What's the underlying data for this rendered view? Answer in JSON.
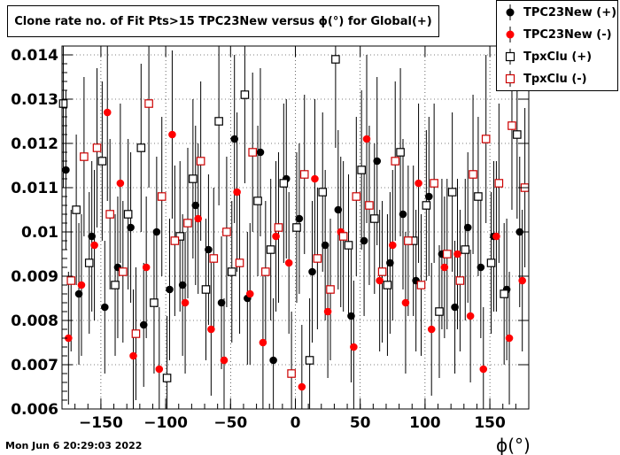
{
  "title": "Clone rate no. of Fit Pts>15 TPC23New versus ϕ(°) for Global(+)",
  "timestamp": "Mon Jun  6 20:29:03 2022",
  "chart_data": {
    "type": "scatter",
    "title": "Clone rate no. of Fit Pts>15 TPC23New versus ϕ(°) for Global(+)",
    "xlabel": "ϕ(°)",
    "ylabel": "",
    "xlim": [
      -180,
      180
    ],
    "ylim": [
      0.006,
      0.0142
    ],
    "grid": true,
    "legend_position": "top-right",
    "x_ticks": [
      -150,
      -100,
      -50,
      0,
      50,
      100,
      150
    ],
    "x_tick_labels": [
      "−150",
      "−100",
      "−50",
      "0",
      "50",
      "100",
      "150"
    ],
    "y_ticks": [
      0.006,
      0.007,
      0.008,
      0.009,
      0.01,
      0.011,
      0.012,
      0.013,
      0.014
    ],
    "y_tick_labels": [
      "0.006",
      "0.007",
      "0.008",
      "0.009",
      "0.01",
      "0.011",
      "0.012",
      "0.013",
      "0.014"
    ],
    "series": [
      {
        "name": "TPC23New (+)",
        "marker": "filled-circle",
        "color": "#000000",
        "x": [
          -177,
          -167,
          -157,
          -147,
          -137,
          -127,
          -117,
          -107,
          -97,
          -87,
          -77,
          -67,
          -57,
          -47,
          -37,
          -27,
          -17,
          -7,
          3,
          13,
          23,
          33,
          43,
          53,
          63,
          73,
          83,
          93,
          103,
          113,
          123,
          133,
          143,
          153,
          163,
          173
        ],
        "y": [
          0.0114,
          0.0086,
          0.0099,
          0.0083,
          0.0092,
          0.0101,
          0.0079,
          0.01,
          0.0087,
          0.0088,
          0.0106,
          0.0096,
          0.0084,
          0.0121,
          0.0085,
          0.0118,
          0.0071,
          0.0112,
          0.0103,
          0.0091,
          0.0097,
          0.0105,
          0.0081,
          0.0098,
          0.0116,
          0.0093,
          0.0104,
          0.0089,
          0.0108,
          0.0095,
          0.0083,
          0.0101,
          0.0092,
          0.0099,
          0.0087,
          0.01
        ],
        "err": [
          0.0018,
          0.0016,
          0.0017,
          0.0015,
          0.0016,
          0.0017,
          0.0014,
          0.0017,
          0.0016,
          0.0016,
          0.0018,
          0.0017,
          0.0015,
          0.0019,
          0.0015,
          0.0019,
          0.0014,
          0.0018,
          0.0017,
          0.0016,
          0.0017,
          0.0018,
          0.0015,
          0.0017,
          0.0019,
          0.0016,
          0.0017,
          0.0016,
          0.0018,
          0.0017,
          0.0015,
          0.0017,
          0.0016,
          0.0017,
          0.0016,
          0.0017
        ]
      },
      {
        "name": "TPC23New (-)",
        "marker": "filled-circle",
        "color": "#ff0000",
        "x": [
          -175,
          -165,
          -155,
          -145,
          -135,
          -125,
          -115,
          -105,
          -95,
          -85,
          -75,
          -65,
          -55,
          -45,
          -35,
          -25,
          -15,
          -5,
          5,
          15,
          25,
          35,
          45,
          55,
          65,
          75,
          85,
          95,
          105,
          115,
          125,
          135,
          145,
          155,
          165,
          175
        ],
        "y": [
          0.0076,
          0.0088,
          0.0097,
          0.0127,
          0.0111,
          0.0072,
          0.0092,
          0.0069,
          0.0122,
          0.0084,
          0.0103,
          0.0078,
          0.0071,
          0.0109,
          0.0086,
          0.0075,
          0.0099,
          0.0093,
          0.0065,
          0.0112,
          0.0082,
          0.01,
          0.0074,
          0.0121,
          0.0089,
          0.0097,
          0.0084,
          0.0111,
          0.0078,
          0.0092,
          0.0095,
          0.0081,
          0.0069,
          0.0099,
          0.0076,
          0.0089
        ],
        "err": [
          0.0015,
          0.0016,
          0.0017,
          0.002,
          0.0018,
          0.0015,
          0.0016,
          0.0014,
          0.0019,
          0.0016,
          0.0017,
          0.0015,
          0.0014,
          0.0018,
          0.0016,
          0.0015,
          0.0017,
          0.0016,
          0.0014,
          0.0018,
          0.0015,
          0.0017,
          0.0015,
          0.0019,
          0.0016,
          0.0017,
          0.0016,
          0.0018,
          0.0015,
          0.0016,
          0.0017,
          0.0015,
          0.0014,
          0.0017,
          0.0015,
          0.0016
        ]
      },
      {
        "name": "TpxClu (+)",
        "marker": "open-square",
        "color": "#000000",
        "x": [
          -179,
          -169,
          -159,
          -149,
          -139,
          -129,
          -119,
          -109,
          -99,
          -89,
          -79,
          -69,
          -59,
          -49,
          -39,
          -29,
          -19,
          -9,
          1,
          11,
          21,
          31,
          41,
          51,
          61,
          71,
          81,
          91,
          101,
          111,
          121,
          131,
          141,
          151,
          161,
          171
        ],
        "y": [
          0.0129,
          0.0105,
          0.0093,
          0.0116,
          0.0088,
          0.0104,
          0.0119,
          0.0084,
          0.0067,
          0.0099,
          0.0112,
          0.0087,
          0.0125,
          0.0091,
          0.0131,
          0.0107,
          0.0096,
          0.0111,
          0.0101,
          0.0071,
          0.0109,
          0.0139,
          0.0097,
          0.0114,
          0.0103,
          0.0088,
          0.0118,
          0.0098,
          0.0106,
          0.0082,
          0.0109,
          0.0096,
          0.0108,
          0.0093,
          0.0086,
          0.0122
        ],
        "err": [
          0.0019,
          0.0017,
          0.0016,
          0.0018,
          0.0016,
          0.0017,
          0.0019,
          0.0016,
          0.0014,
          0.0017,
          0.0018,
          0.0016,
          0.0019,
          0.0016,
          0.002,
          0.0017,
          0.0016,
          0.0018,
          0.0017,
          0.0014,
          0.0018,
          0.002,
          0.0016,
          0.0018,
          0.0017,
          0.0016,
          0.0019,
          0.0017,
          0.0017,
          0.0015,
          0.0018,
          0.0016,
          0.0018,
          0.0016,
          0.0016,
          0.0019
        ]
      },
      {
        "name": "TpxClu (-)",
        "marker": "open-square",
        "color": "#cc0000",
        "x": [
          -173,
          -163,
          -153,
          -143,
          -133,
          -123,
          -113,
          -103,
          -93,
          -83,
          -73,
          -63,
          -53,
          -43,
          -33,
          -23,
          -13,
          -3,
          7,
          17,
          27,
          37,
          47,
          57,
          67,
          77,
          87,
          97,
          107,
          117,
          127,
          137,
          147,
          157,
          167,
          177
        ],
        "y": [
          0.0089,
          0.0117,
          0.0119,
          0.0104,
          0.0091,
          0.0077,
          0.0129,
          0.0108,
          0.0098,
          0.0102,
          0.0116,
          0.0094,
          0.01,
          0.0093,
          0.0118,
          0.0091,
          0.0101,
          0.0068,
          0.0113,
          0.0094,
          0.0087,
          0.0099,
          0.0108,
          0.0106,
          0.0091,
          0.0116,
          0.0098,
          0.0088,
          0.0111,
          0.0095,
          0.0089,
          0.0113,
          0.0121,
          0.0111,
          0.0124,
          0.011
        ],
        "err": [
          0.0016,
          0.0018,
          0.0018,
          0.0017,
          0.0016,
          0.0015,
          0.0019,
          0.0018,
          0.0017,
          0.0017,
          0.0018,
          0.0016,
          0.0017,
          0.0016,
          0.0018,
          0.0016,
          0.0017,
          0.0014,
          0.0018,
          0.0016,
          0.0016,
          0.0017,
          0.0018,
          0.0018,
          0.0016,
          0.0018,
          0.0017,
          0.0016,
          0.0018,
          0.0017,
          0.0016,
          0.0018,
          0.0019,
          0.0018,
          0.0019,
          0.0018
        ]
      }
    ]
  }
}
